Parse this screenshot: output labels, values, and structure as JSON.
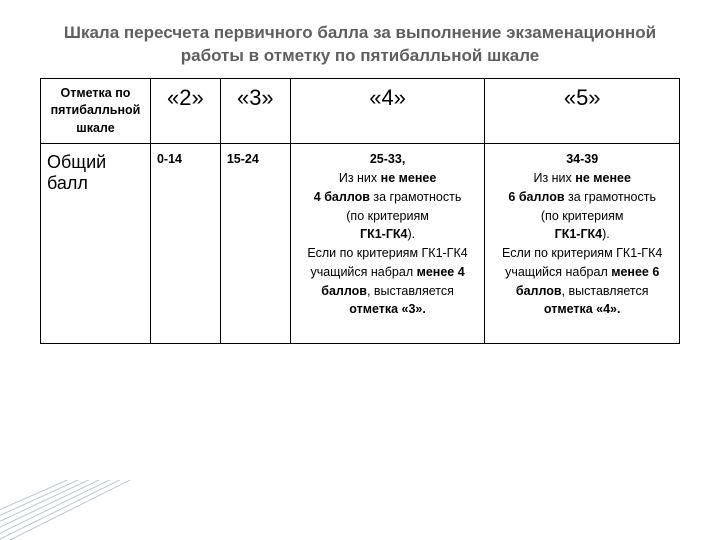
{
  "title": "Шкала пересчета первичного балла за выполнение экзаменационной работы в отметку по пятибалльной шкале",
  "header": {
    "label": "Отметка по пятибалльной шкале",
    "grades": [
      "«2»",
      "«3»",
      "«4»",
      "«5»"
    ]
  },
  "row": {
    "label": "Общий балл",
    "cells": {
      "c2": "0-14",
      "c3": "15-24",
      "c4": {
        "range": "25-33,",
        "line1a": "Из них ",
        "line1b": "не менее",
        "line2b": "4 баллов",
        "line2a": " за грамотность",
        "line3": "(по критериям",
        "line4b": "ГК1-ГК4",
        "line4a": ").",
        "line5a": "Если по критериям ГК1-ГК4 учащийся набрал ",
        "line5b": "менее 4 баллов",
        "line5c": ", выставляется ",
        "line5d": "отметка «3»."
      },
      "c5": {
        "range": "34-39",
        "line1a": "Из них ",
        "line1b": "не менее",
        "line2b": "6 баллов",
        "line2a": " за грамотность",
        "line3": "(по критериям",
        "line4b": "ГК1-ГК4",
        "line4a": ").",
        "line5a": "Если по критериям ГК1-ГК4 учащийся набрал ",
        "line5b": "менее 6 баллов",
        "line5c": ", выставляется ",
        "line5d": "отметка «4»."
      }
    }
  },
  "columns": {
    "w0": 110,
    "w1": 70,
    "w2": 70,
    "w3": 195,
    "w4": 195
  },
  "style": {
    "title_color": "#5f5f5f",
    "border_color": "#000000",
    "corner_line_color": "#b9c8d3"
  }
}
